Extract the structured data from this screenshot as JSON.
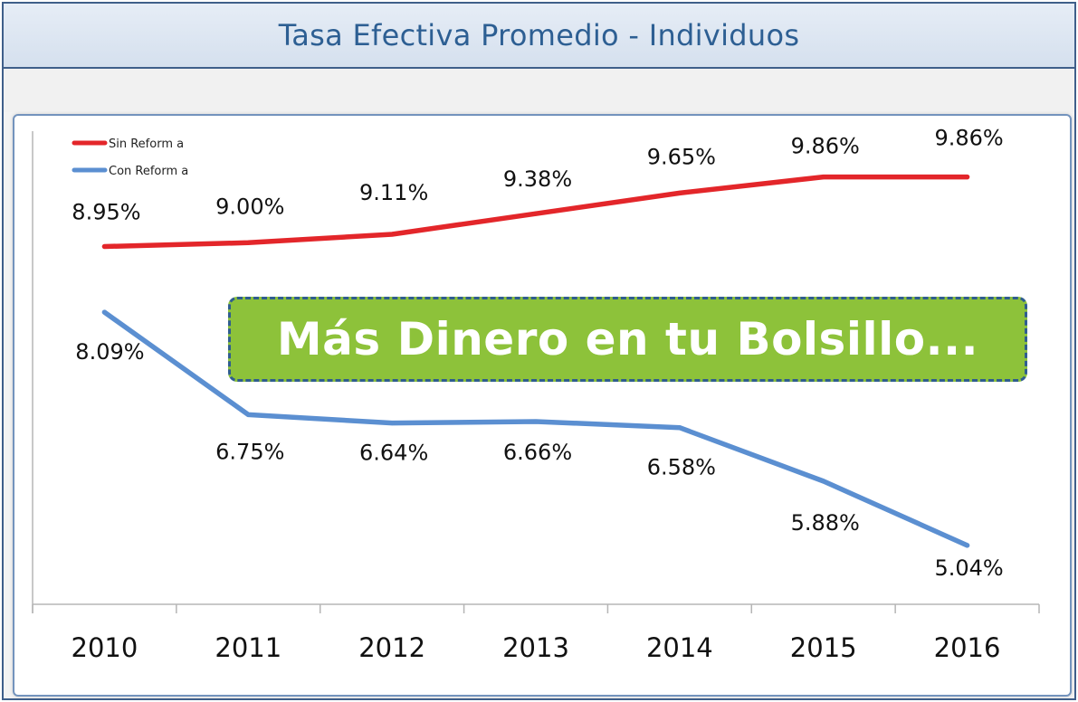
{
  "header": {
    "title": "Tasa Efectiva Promedio - Individuos"
  },
  "callout": {
    "text": "Más Dinero en tu Bolsillo..."
  },
  "colors": {
    "sin_reforma": "#e3262a",
    "con_reforma": "#5b8fd1",
    "callout_fill": "#8dc23a",
    "header_text": "#2d5f93"
  },
  "chart_data": {
    "type": "line",
    "title": "Tasa Efectiva Promedio - Individuos",
    "xlabel": "",
    "ylabel": "",
    "categories": [
      "2010",
      "2011",
      "2012",
      "2013",
      "2014",
      "2015",
      "2016"
    ],
    "series": [
      {
        "name": "Sin Reform a",
        "values": [
          8.95,
          9.0,
          9.11,
          9.38,
          9.65,
          9.86,
          9.86
        ],
        "labels": [
          "8.95%",
          "9.00%",
          "9.11%",
          "9.38%",
          "9.65%",
          "9.86%",
          "9.86%"
        ]
      },
      {
        "name": "Con Reform a",
        "values": [
          8.09,
          6.75,
          6.64,
          6.66,
          6.58,
          5.88,
          5.04
        ],
        "labels": [
          "8.09%",
          "6.75%",
          "6.64%",
          "6.66%",
          "6.58%",
          "5.88%",
          "5.04%"
        ]
      }
    ],
    "ylim": [
      4.6,
      10.4
    ],
    "grid": false,
    "legend": "top-left"
  }
}
